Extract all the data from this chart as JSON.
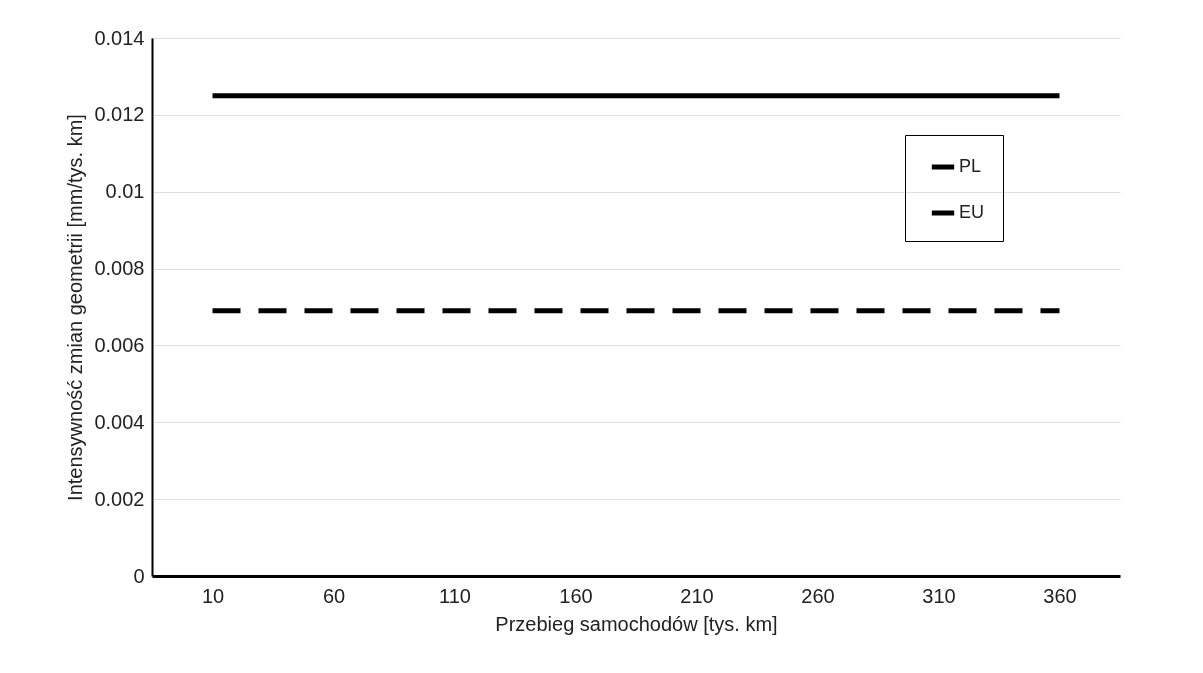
{
  "chart_data": {
    "type": "line",
    "xlabel": "Przebieg samochodów [tys. km]",
    "ylabel": "Intensywność zmian geometrii [mm/tys. km]",
    "categories": [
      "10",
      "60",
      "110",
      "160",
      "210",
      "260",
      "310",
      "360"
    ],
    "series": [
      {
        "name": "PL",
        "color": "#000000",
        "line_style": "solid",
        "values": [
          0.0125,
          0.0125,
          0.0125,
          0.0125,
          0.0125,
          0.0125,
          0.0125,
          0.0125
        ]
      },
      {
        "name": "EU",
        "color": "#000000",
        "line_style": "dashed",
        "values": [
          0.0069,
          0.0069,
          0.0069,
          0.0069,
          0.0069,
          0.0069,
          0.0069,
          0.0069
        ]
      }
    ],
    "ylim": [
      0,
      0.014
    ],
    "yticks": [
      0,
      0.002,
      0.004,
      0.006,
      0.008,
      0.01,
      0.012,
      0.014
    ],
    "grid": "y",
    "legend": "top right"
  }
}
